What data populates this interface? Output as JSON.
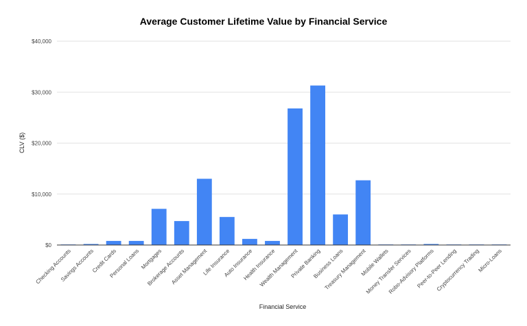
{
  "chart_data": {
    "type": "bar",
    "title": "Average Customer Lifetime Value by Financial Service",
    "xlabel": "Financial Service",
    "ylabel": "CLV ($)",
    "ylim": [
      0,
      40000
    ],
    "yticks": [
      0,
      10000,
      20000,
      30000,
      40000
    ],
    "ytick_labels": [
      "$0",
      "$10,000",
      "$20,000",
      "$30,000",
      "$40,000"
    ],
    "grid": true,
    "legend": "none",
    "bar_color": "#4285f4",
    "categories": [
      "Checking Accounts",
      "Savings Accounts",
      "Credit Cards",
      "Personal Loans",
      "Mortgages",
      "Brokerage Accounts",
      "Asset Management",
      "Life Insurance",
      "Auto Insurance",
      "Health Insurance",
      "Wealth Management",
      "Private Banking",
      "Business Loans",
      "Treasury Management",
      "Mobile Wallets",
      "Money Transfer Services",
      "Robo-Advisory Platforms",
      "Peer-to-Peer Lending",
      "Cryptocurrency Trading",
      "Micro-Loans"
    ],
    "values": [
      100,
      200,
      800,
      800,
      7100,
      4700,
      13000,
      5500,
      1200,
      800,
      26800,
      31300,
      6000,
      12700,
      30,
      30,
      200,
      100,
      100,
      30
    ]
  }
}
